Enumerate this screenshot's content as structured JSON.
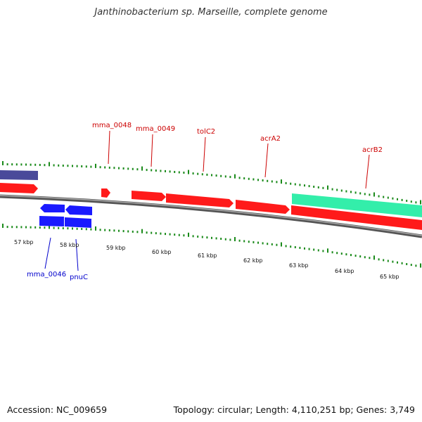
{
  "title": "Janthinobacterium sp. Marseille, complete genome",
  "footer": {
    "accession": "Accession: NC_009659",
    "stats": "Topology: circular; Length: 4,110,251 bp; Genes: 3,749"
  },
  "colors": {
    "forward_cds": "#ff1a1a",
    "reverse_cds": "#1a1aff",
    "rna": "#33eeaa",
    "other_feature": "#4a4a9a",
    "backbone": "#888888",
    "tick": "#1a8a1a",
    "forward_label": "#cc0000",
    "reverse_label": "#0000cc"
  },
  "gene_labels": {
    "forward": [
      "mma_0048",
      "mma_0049",
      "tolC2",
      "acrA2",
      "acrB2"
    ],
    "reverse": [
      "mma_0046",
      "pnuC"
    ]
  },
  "kbp_labels": [
    "57 kbp",
    "58 kbp",
    "59 kbp",
    "60 kbp",
    "61 kbp",
    "62 kbp",
    "63 kbp",
    "64 kbp",
    "65 kbp"
  ]
}
